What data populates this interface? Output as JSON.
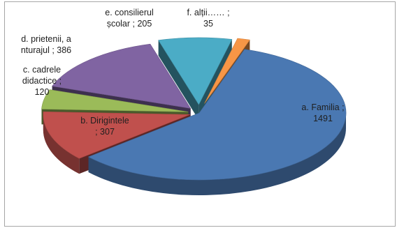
{
  "chart_data": {
    "type": "pie",
    "style": "3d-exploded",
    "legend": "none",
    "categories": [
      "a. Familia",
      "b. Dirigintele",
      "c. cadrele didactice",
      "d. prietenii, anturajul",
      "e. consilierul școlar",
      "f. alții……"
    ],
    "values": [
      1491,
      307,
      120,
      386,
      205,
      35
    ],
    "colors": [
      "#4a78b2",
      "#c0504d",
      "#9bbb59",
      "#8064a2",
      "#4bacc6",
      "#f79646"
    ],
    "data_labels": [
      [
        "a.    Familia  ;",
        "1491"
      ],
      [
        "b.    Dirigintele",
        "; 307"
      ],
      [
        "c.    cadrele",
        "didactice  ;",
        "120"
      ],
      [
        "d.    prietenii, a",
        "nturajul ; 386"
      ],
      [
        "e.    consilierul",
        "școlar ; 205"
      ],
      [
        "f.       alții…… ;",
        "35"
      ]
    ]
  }
}
